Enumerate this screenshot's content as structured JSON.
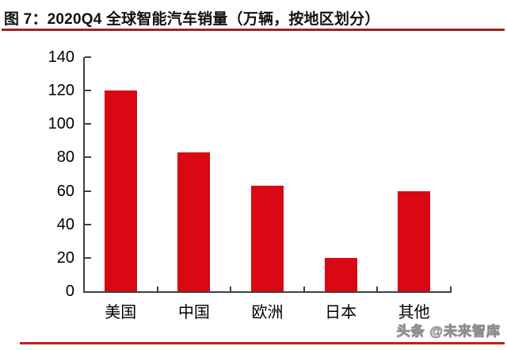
{
  "figure": {
    "title": "图 7：2020Q4 全球智能汽车销量（万辆，按地区划分）",
    "watermark": "头条 @未来智库"
  },
  "chart_data": {
    "type": "bar",
    "title": "图 7：2020Q4 全球智能汽车销量（万辆，按地区划分）",
    "categories": [
      "美国",
      "中国",
      "欧洲",
      "日本",
      "其他"
    ],
    "values": [
      120,
      83,
      63,
      20,
      60
    ],
    "unit": "万辆",
    "xlabel": "",
    "ylabel": "",
    "ylim": [
      0,
      140
    ],
    "yticks": [
      0,
      20,
      40,
      60,
      80,
      100,
      120,
      140
    ],
    "grid": false,
    "legend": "none",
    "bar_color": "#d90812"
  },
  "colors": {
    "bar": "#d90812",
    "title_underline": "#9f2222",
    "bottom_line": "#c2201d",
    "axis": "#404040",
    "text": "#000000",
    "watermark_stroke": "#8f8f8f"
  }
}
